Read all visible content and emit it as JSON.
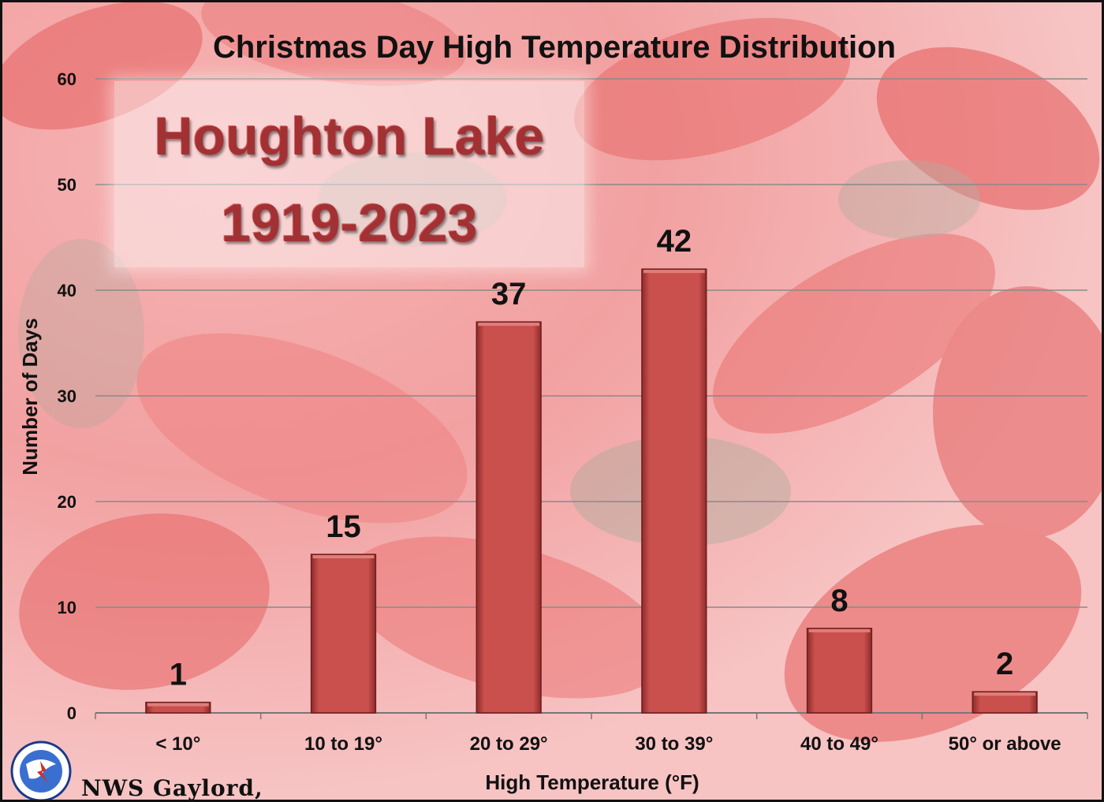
{
  "chart_data": {
    "type": "bar",
    "title": "Christmas Day High Temperature Distribution",
    "xlabel": "High Temperature (°F)",
    "ylabel": "Number of Days",
    "categories": [
      "< 10°",
      "10 to 19°",
      "20 to 29°",
      "30 to 39°",
      "40 to 49°",
      "50° or above"
    ],
    "values": [
      1,
      15,
      37,
      42,
      8,
      2
    ],
    "ylim": [
      0,
      60
    ],
    "yticks": [
      0,
      10,
      20,
      30,
      40,
      50,
      60
    ],
    "grid": true,
    "bar_color": "#c9504d"
  },
  "overlay": {
    "line1": "Houghton Lake",
    "line2": "1919-2023"
  },
  "footer": {
    "credit": "NWS Gaylord,"
  }
}
